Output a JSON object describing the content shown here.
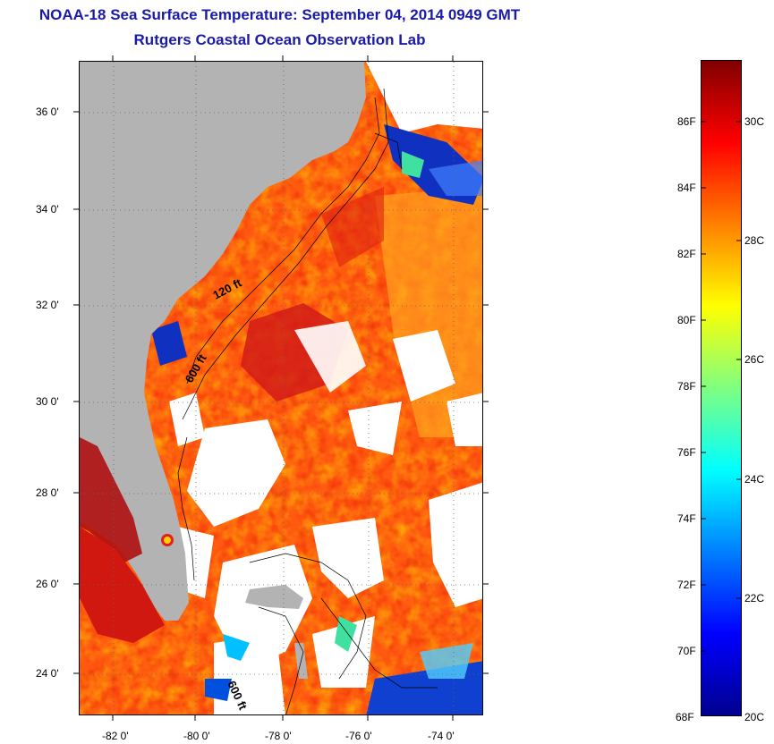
{
  "header": {
    "title": "NOAA-18 Sea Surface Temperature:  September 04, 2014 0949 GMT",
    "subtitle": "Rutgers Coastal Ocean Observation Lab"
  },
  "map": {
    "lat_labels": [
      "36 0'",
      "34 0'",
      "32 0'",
      "30 0'",
      "28 0'",
      "26 0'",
      "24 0'"
    ],
    "lon_labels": [
      "-82 0'",
      "-80 0'",
      "-78 0'",
      "-76 0'",
      "-74 0'"
    ],
    "contour_labels": [
      "120 ft",
      "600 ft",
      "600 ft"
    ],
    "land_color": "#b3b3b3",
    "cloud_color": "#ffffff"
  },
  "colorbar": {
    "fahrenheit_labels": [
      "86F",
      "84F",
      "82F",
      "80F",
      "78F",
      "76F",
      "74F",
      "72F",
      "70F",
      "68F"
    ],
    "celsius_labels": [
      "30C",
      "28C",
      "26C",
      "24C",
      "22C",
      "20C"
    ],
    "colormap": [
      "#00008f",
      "#0000ff",
      "#0080ff",
      "#00ffff",
      "#80ff80",
      "#ffff00",
      "#ff8000",
      "#ff0000",
      "#800000"
    ]
  }
}
